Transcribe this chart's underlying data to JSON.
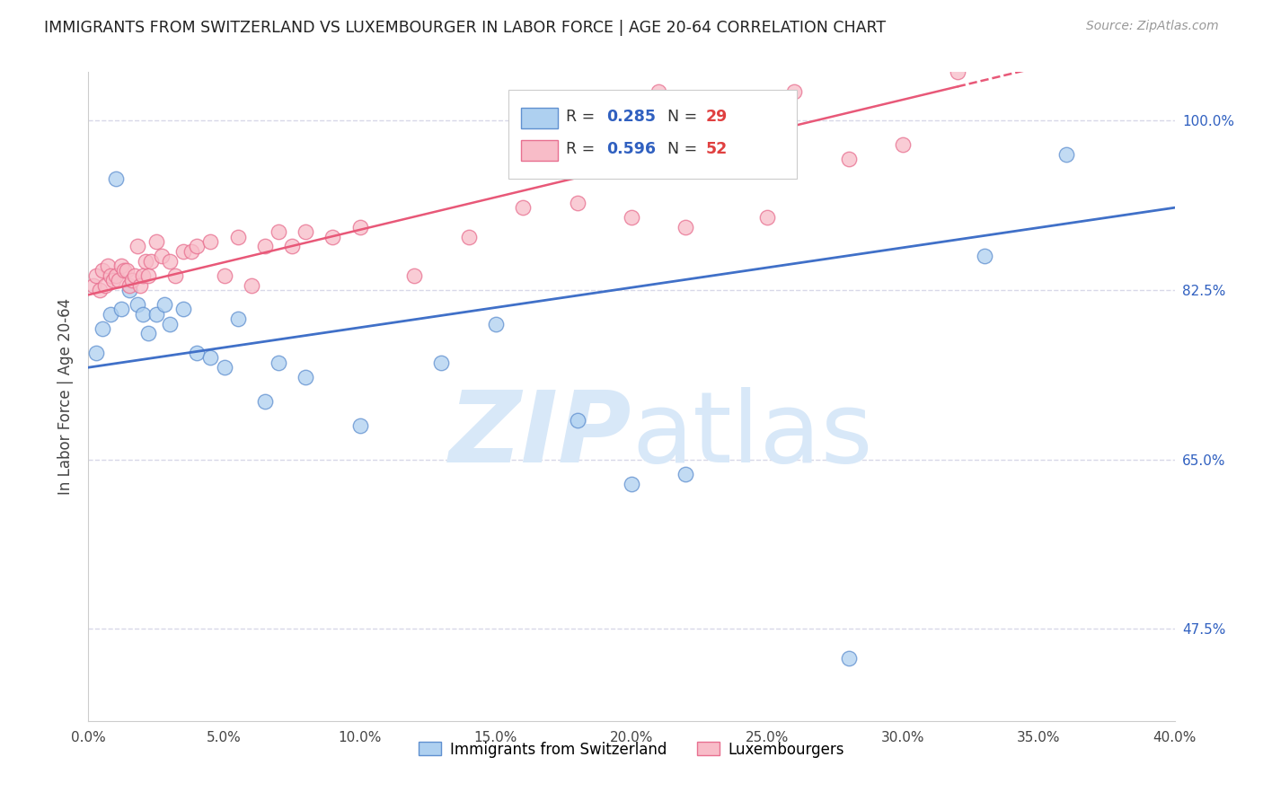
{
  "title": "IMMIGRANTS FROM SWITZERLAND VS LUXEMBOURGER IN LABOR FORCE | AGE 20-64 CORRELATION CHART",
  "source": "Source: ZipAtlas.com",
  "xlabel_vals": [
    0.0,
    5.0,
    10.0,
    15.0,
    20.0,
    25.0,
    30.0,
    35.0,
    40.0
  ],
  "right_ytick_vals": [
    47.5,
    65.0,
    82.5,
    100.0
  ],
  "right_ytick_labels": [
    "47.5%",
    "65.0%",
    "82.5%",
    "100.0%"
  ],
  "xlim": [
    0.0,
    40.0
  ],
  "ylim": [
    38.0,
    105.0
  ],
  "ylabel": "In Labor Force | Age 20-64",
  "legend_blue_r": "0.285",
  "legend_blue_n": "29",
  "legend_pink_r": "0.596",
  "legend_pink_n": "52",
  "legend_blue_label": "Immigrants from Switzerland",
  "legend_pink_label": "Luxembourgers",
  "blue_color": "#AED0F0",
  "pink_color": "#F8BCC8",
  "blue_edge_color": "#6090D0",
  "pink_edge_color": "#E87090",
  "blue_line_color": "#4070C8",
  "pink_line_color": "#E85878",
  "r_label_color": "#3060C0",
  "n_label_color": "#E04040",
  "watermark_color": "#D8E8F8",
  "grid_color": "#D8D8E8",
  "blue_scatter_x": [
    0.3,
    0.5,
    0.8,
    1.0,
    1.2,
    1.5,
    1.8,
    2.0,
    2.2,
    2.5,
    2.8,
    3.0,
    3.5,
    4.0,
    4.5,
    5.0,
    5.5,
    6.5,
    7.0,
    8.0,
    10.0,
    13.0,
    15.0,
    18.0,
    20.0,
    22.0,
    28.0,
    33.0,
    36.0
  ],
  "blue_scatter_y": [
    76.0,
    78.5,
    80.0,
    94.0,
    80.5,
    82.5,
    81.0,
    80.0,
    78.0,
    80.0,
    81.0,
    79.0,
    80.5,
    76.0,
    75.5,
    74.5,
    79.5,
    71.0,
    75.0,
    73.5,
    68.5,
    75.0,
    79.0,
    69.0,
    62.5,
    63.5,
    44.5,
    86.0,
    96.5
  ],
  "pink_scatter_x": [
    0.2,
    0.3,
    0.4,
    0.5,
    0.6,
    0.7,
    0.8,
    0.9,
    1.0,
    1.1,
    1.2,
    1.3,
    1.4,
    1.5,
    1.6,
    1.7,
    1.8,
    1.9,
    2.0,
    2.1,
    2.2,
    2.3,
    2.5,
    2.7,
    3.0,
    3.2,
    3.5,
    3.8,
    4.0,
    4.5,
    5.0,
    5.5,
    6.0,
    6.5,
    7.0,
    7.5,
    8.0,
    9.0,
    10.0,
    12.0,
    14.0,
    16.0,
    18.0,
    19.0,
    20.0,
    21.0,
    22.0,
    25.0,
    26.0,
    28.0,
    30.0,
    32.0
  ],
  "pink_scatter_y": [
    83.0,
    84.0,
    82.5,
    84.5,
    83.0,
    85.0,
    84.0,
    83.5,
    84.0,
    83.5,
    85.0,
    84.5,
    84.5,
    83.0,
    83.5,
    84.0,
    87.0,
    83.0,
    84.0,
    85.5,
    84.0,
    85.5,
    87.5,
    86.0,
    85.5,
    84.0,
    86.5,
    86.5,
    87.0,
    87.5,
    84.0,
    88.0,
    83.0,
    87.0,
    88.5,
    87.0,
    88.5,
    88.0,
    89.0,
    84.0,
    88.0,
    91.0,
    91.5,
    97.0,
    90.0,
    103.0,
    89.0,
    90.0,
    103.0,
    96.0,
    97.5,
    105.0
  ],
  "blue_line_x0": 0.0,
  "blue_line_y0": 74.5,
  "blue_line_x1": 40.0,
  "blue_line_y1": 91.0,
  "pink_line_x0": 0.0,
  "pink_line_y0": 82.0,
  "pink_line_x1": 32.0,
  "pink_line_y1": 103.5
}
